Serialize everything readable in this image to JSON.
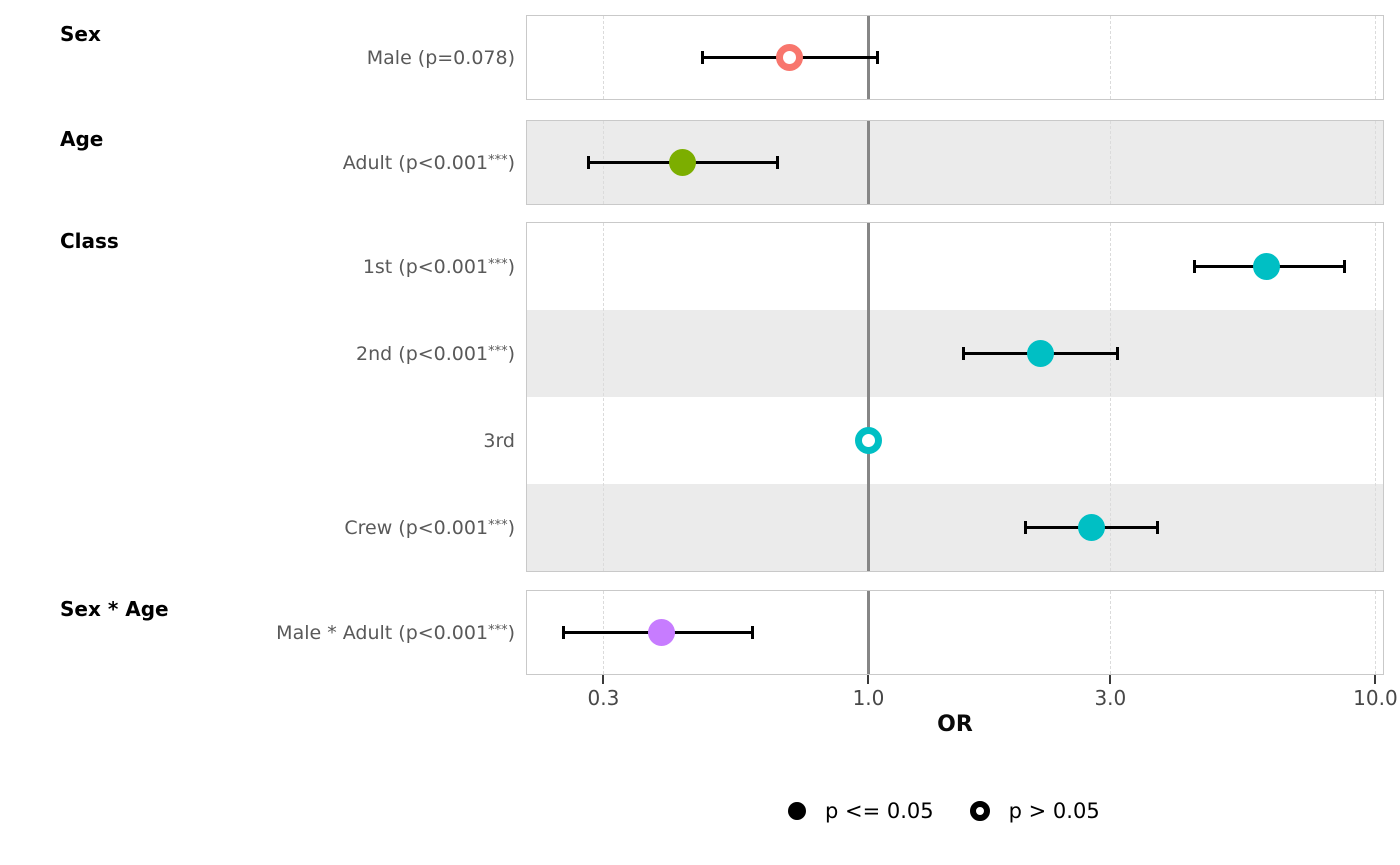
{
  "chart_data": {
    "type": "forest",
    "title": "",
    "xlabel": "OR",
    "x_axis": {
      "label": "OR",
      "scale": "log",
      "tick_labels": [
        "0.3",
        "1.0",
        "3.0",
        "10.0"
      ],
      "tick_values": [
        0.3,
        1.0,
        3.0,
        10.0
      ],
      "domain": [
        0.212,
        10.35
      ],
      "dashed_gridlines": [
        0.3,
        3.0,
        10.0
      ],
      "reference_line": 1.0
    },
    "groups": [
      {
        "name": "Sex",
        "rows": [
          {
            "id": "male",
            "label": "Male (p=0.078)",
            "or": 0.7,
            "ci_low": 0.47,
            "ci_high": 1.04,
            "significant": false,
            "color": "#F8766D"
          }
        ]
      },
      {
        "name": "Age",
        "rows": [
          {
            "id": "adult",
            "label": "Adult (p<0.001***)",
            "or": 0.43,
            "ci_low": 0.28,
            "ci_high": 0.66,
            "significant": true,
            "color": "#7CAE00"
          }
        ]
      },
      {
        "name": "Class",
        "rows": [
          {
            "id": "class-1st",
            "label": "1st (p<0.001***)",
            "or": 6.1,
            "ci_low": 4.4,
            "ci_high": 8.7,
            "significant": true,
            "color": "#00BFC4"
          },
          {
            "id": "class-2nd",
            "label": "2nd (p<0.001***)",
            "or": 2.18,
            "ci_low": 1.54,
            "ci_high": 3.1,
            "significant": true,
            "color": "#00BFC4"
          },
          {
            "id": "class-3rd",
            "label": "3rd",
            "or": 1.0,
            "ci_low": null,
            "ci_high": null,
            "significant": false,
            "color": "#00BFC4"
          },
          {
            "id": "class-crew",
            "label": "Crew (p<0.001***)",
            "or": 2.75,
            "ci_low": 2.04,
            "ci_high": 3.72,
            "significant": true,
            "color": "#00BFC4"
          }
        ]
      },
      {
        "name": "Sex * Age",
        "rows": [
          {
            "id": "male-adult",
            "label": "Male * Adult (p<0.001***)",
            "or": 0.39,
            "ci_low": 0.25,
            "ci_high": 0.59,
            "significant": true,
            "color": "#C77CFF"
          }
        ]
      }
    ],
    "legend": {
      "position": "bottom-center",
      "items": [
        {
          "label": "p <= 0.05",
          "marker": "filled-circle"
        },
        {
          "label": "p > 0.05",
          "marker": "open-circle"
        }
      ]
    },
    "colors": {
      "stripe": "#EBEBEB",
      "panel_border": "#C9C9C9",
      "grid_dashed": "#DBDBDB",
      "reference_line": "#868686",
      "errorbar": "#000000",
      "term_label_text": "#595959",
      "header_text": "#000000",
      "axis_text": "#474747",
      "sex_point": "#F8766D",
      "age_point": "#7CAE00",
      "class_point": "#00BFC4",
      "interaction_point": "#C77CFF"
    }
  }
}
